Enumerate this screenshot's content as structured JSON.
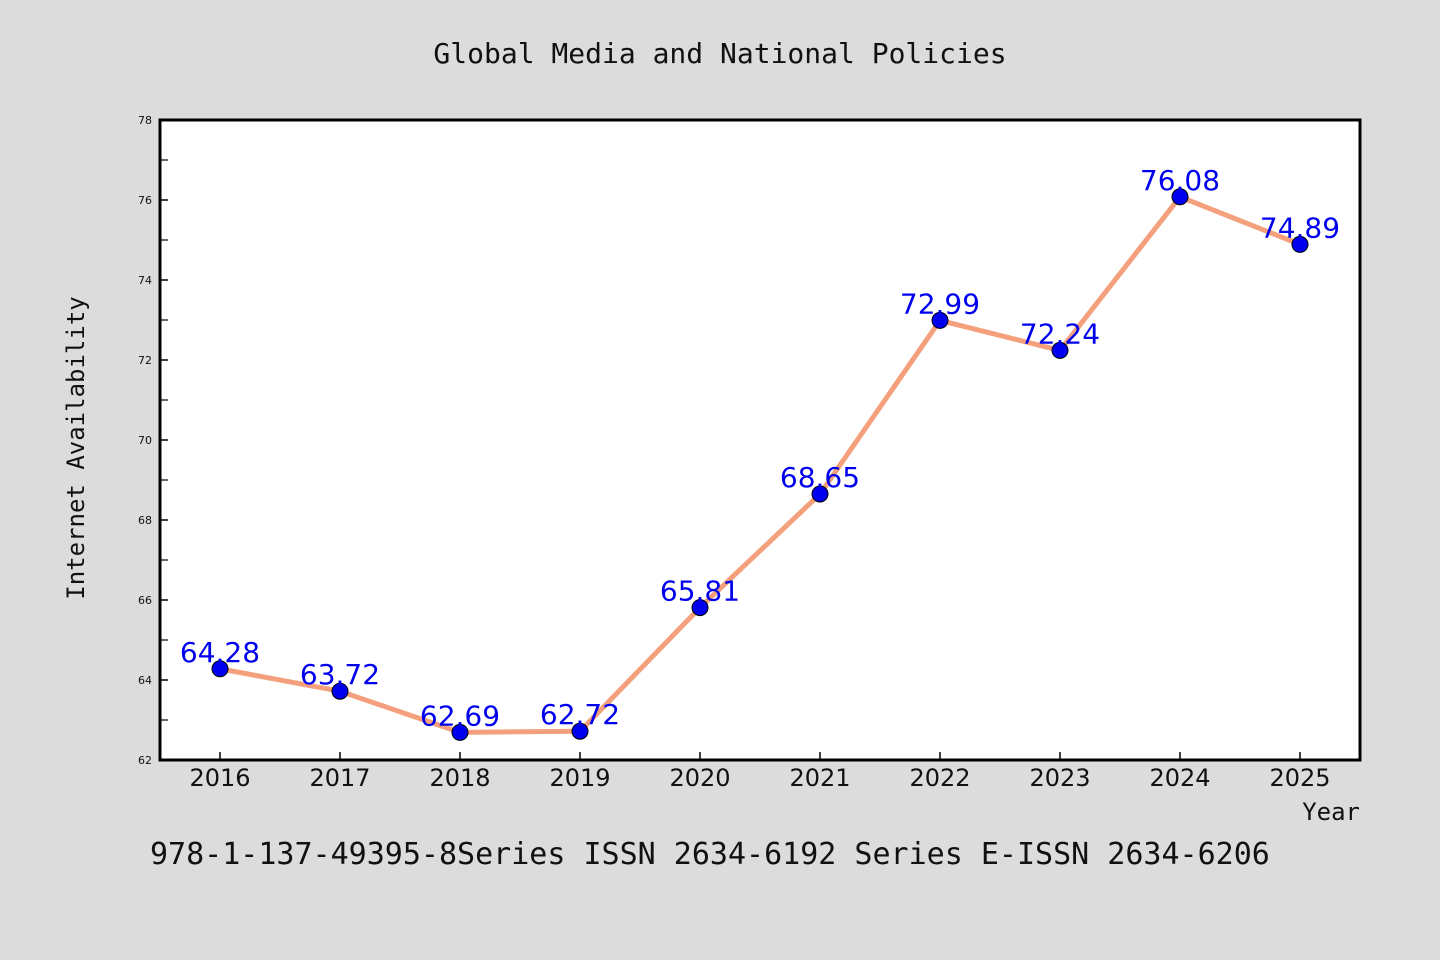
{
  "chart_data": {
    "type": "line",
    "title": "Global Media and National Policies",
    "xlabel": "Year",
    "ylabel": "Internet Availability",
    "categories": [
      "2016",
      "2017",
      "2018",
      "2019",
      "2020",
      "2021",
      "2022",
      "2023",
      "2024",
      "2025"
    ],
    "series": [
      {
        "values": [
          64.28,
          63.72,
          62.69,
          62.72,
          65.81,
          68.65,
          72.99,
          72.24,
          76.08,
          74.89
        ],
        "labels": [
          "64.28",
          "63.72",
          "62.69",
          "62.72",
          "65.81",
          "68.65",
          "72.99",
          "72.24",
          "76.08",
          "74.89"
        ],
        "line_color": "#f4a07c",
        "marker_color": "#0000ee",
        "label_color": "#0000ee"
      }
    ],
    "ylim": [
      62,
      78
    ],
    "yticks": [
      "62",
      "64",
      "66",
      "68",
      "70",
      "72",
      "74",
      "76",
      "78"
    ],
    "grid": false,
    "legend": "none"
  },
  "footer": {
    "text": "978-1-137-49395-8Series ISSN 2634-6192 Series E-ISSN 2634-6206"
  },
  "colors": {
    "background": "#dcdcdc",
    "plot_background": "#ffffff",
    "axis": "#000000"
  }
}
